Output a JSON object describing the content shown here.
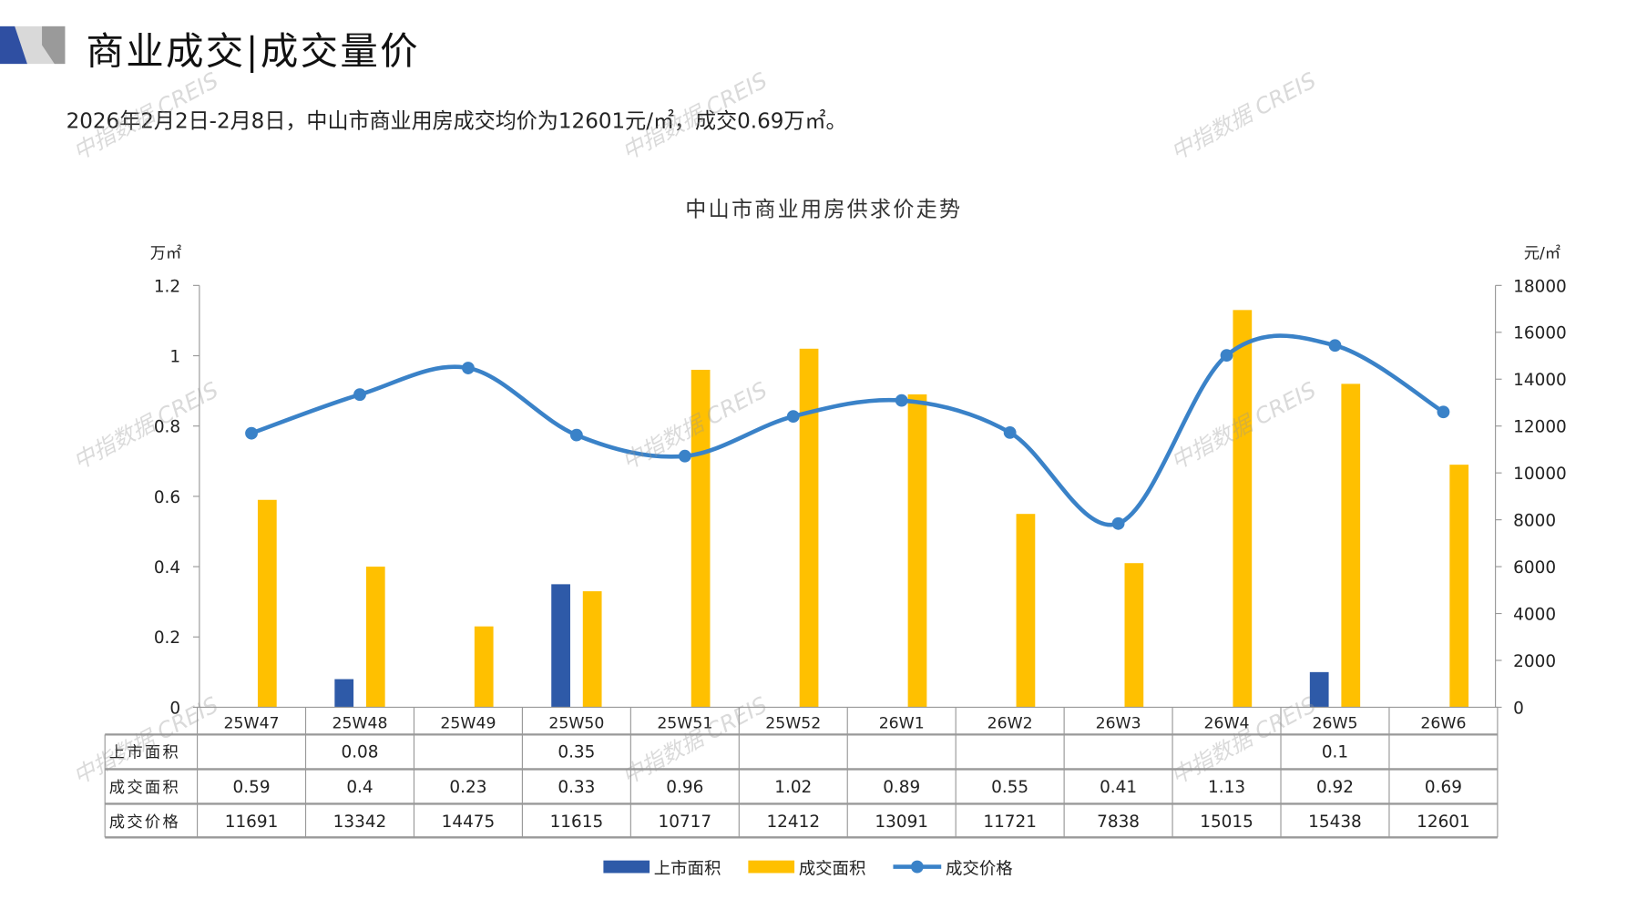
{
  "header": {
    "title": "商业成交|成交量价",
    "subtitle": "2026年2月2日-2月8日，中山市商业用房成交均价为12601元/㎡，成交0.69万㎡。"
  },
  "watermark": "中指数据 CREIS",
  "colors": {
    "supply": "#2e5aa8",
    "deal_area": "#ffc000",
    "price": "#3a82c8",
    "logo_blue": "#2f4fa2",
    "logo_gray": "#9a9a9a"
  },
  "chart_data": {
    "type": "bar",
    "title": "中山市商业用房供求价走势",
    "left_unit": "万㎡",
    "right_unit": "元/㎡",
    "left_ylim": [
      0,
      1.2
    ],
    "left_ticks": [
      "0",
      "0.2",
      "0.4",
      "0.6",
      "0.8",
      "1",
      "1.2"
    ],
    "right_ylim": [
      0,
      18000
    ],
    "right_ticks": [
      "0",
      "2000",
      "4000",
      "6000",
      "8000",
      "10000",
      "12000",
      "14000",
      "16000",
      "18000"
    ],
    "categories": [
      "25W47",
      "25W48",
      "25W49",
      "25W50",
      "25W51",
      "25W52",
      "26W1",
      "26W2",
      "26W3",
      "26W4",
      "26W5",
      "26W6"
    ],
    "series": [
      {
        "name": "上市面积",
        "type": "bar",
        "axis": "left",
        "values": [
          null,
          0.08,
          null,
          0.35,
          null,
          null,
          null,
          null,
          null,
          null,
          0.1,
          null
        ],
        "labels": [
          "",
          "0.08",
          "",
          "0.35",
          "",
          "",
          "",
          "",
          "",
          "",
          "0.1",
          ""
        ]
      },
      {
        "name": "成交面积",
        "type": "bar",
        "axis": "left",
        "values": [
          0.59,
          0.4,
          0.23,
          0.33,
          0.96,
          1.02,
          0.89,
          0.55,
          0.41,
          1.13,
          0.92,
          0.69
        ],
        "labels": [
          "0.59",
          "0.4",
          "0.23",
          "0.33",
          "0.96",
          "1.02",
          "0.89",
          "0.55",
          "0.41",
          "1.13",
          "0.92",
          "0.69"
        ]
      },
      {
        "name": "成交价格",
        "type": "line",
        "axis": "right",
        "values": [
          11691,
          13342,
          14475,
          11615,
          10717,
          12412,
          13091,
          11721,
          7838,
          15015,
          15438,
          12601
        ],
        "labels": [
          "11691",
          "13342",
          "14475",
          "11615",
          "10717",
          "12412",
          "13091",
          "11721",
          "7838",
          "15015",
          "15438",
          "12601"
        ]
      }
    ],
    "legend_position": "bottom"
  }
}
